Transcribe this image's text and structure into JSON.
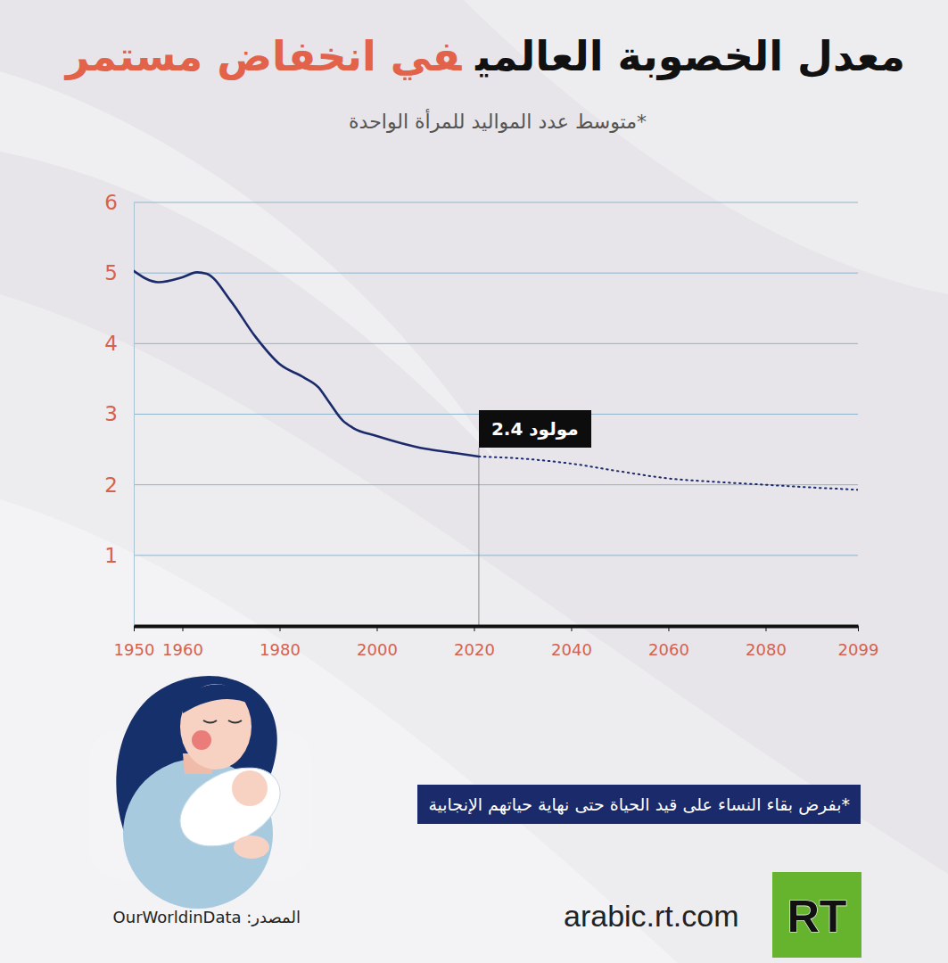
{
  "chart_data": {
    "type": "line",
    "title": [
      "معدل الخصوبة العالمي",
      "في انخفاض مستمر"
    ],
    "subtitle": "*متوسط عدد المواليد للمرأة الواحدة",
    "x": [
      1950,
      1955,
      1960,
      1963,
      1965,
      1970,
      1975,
      1980,
      1985,
      1988,
      1990,
      1993,
      1995,
      2000,
      2005,
      2010,
      2015,
      2021,
      2030,
      2040,
      2050,
      2060,
      2070,
      2080,
      2090,
      2099
    ],
    "series": [
      {
        "color": "#1b2a6b",
        "line_style": "solid",
        "values": [
          5.03,
          4.87,
          4.94,
          5.01,
          4.99,
          4.6,
          4.1,
          3.71,
          3.52,
          3.38,
          3.19,
          2.91,
          2.81,
          2.69,
          2.59,
          2.51,
          2.46,
          2.4,
          null,
          null,
          null,
          null,
          null,
          null,
          null,
          null
        ]
      },
      {
        "color": "#1b2a6b",
        "line_style": "dotted",
        "values": [
          null,
          null,
          null,
          null,
          null,
          null,
          null,
          null,
          null,
          null,
          null,
          null,
          null,
          null,
          null,
          null,
          null,
          2.4,
          2.37,
          2.3,
          2.19,
          2.09,
          2.04,
          2.0,
          1.96,
          1.93
        ]
      }
    ],
    "xlim": [
      1950,
      2099
    ],
    "xticks": [
      1950,
      1960,
      1980,
      2000,
      2020,
      2040,
      2060,
      2080,
      2099
    ],
    "ylim": [
      0,
      6
    ],
    "yticks": [
      1,
      2,
      3,
      4,
      5,
      6
    ],
    "grid": true,
    "annotations": [
      {
        "text": "2.4 مولود",
        "x": 2021,
        "y": 2.4
      }
    ],
    "note": "*بفرض بقاء النساء على قيد الحياة حتى نهاية حياتهم الإنجابية",
    "source": "المصدر: OurWorldinData",
    "website": "arabic.rt.com",
    "logo": "RT"
  }
}
